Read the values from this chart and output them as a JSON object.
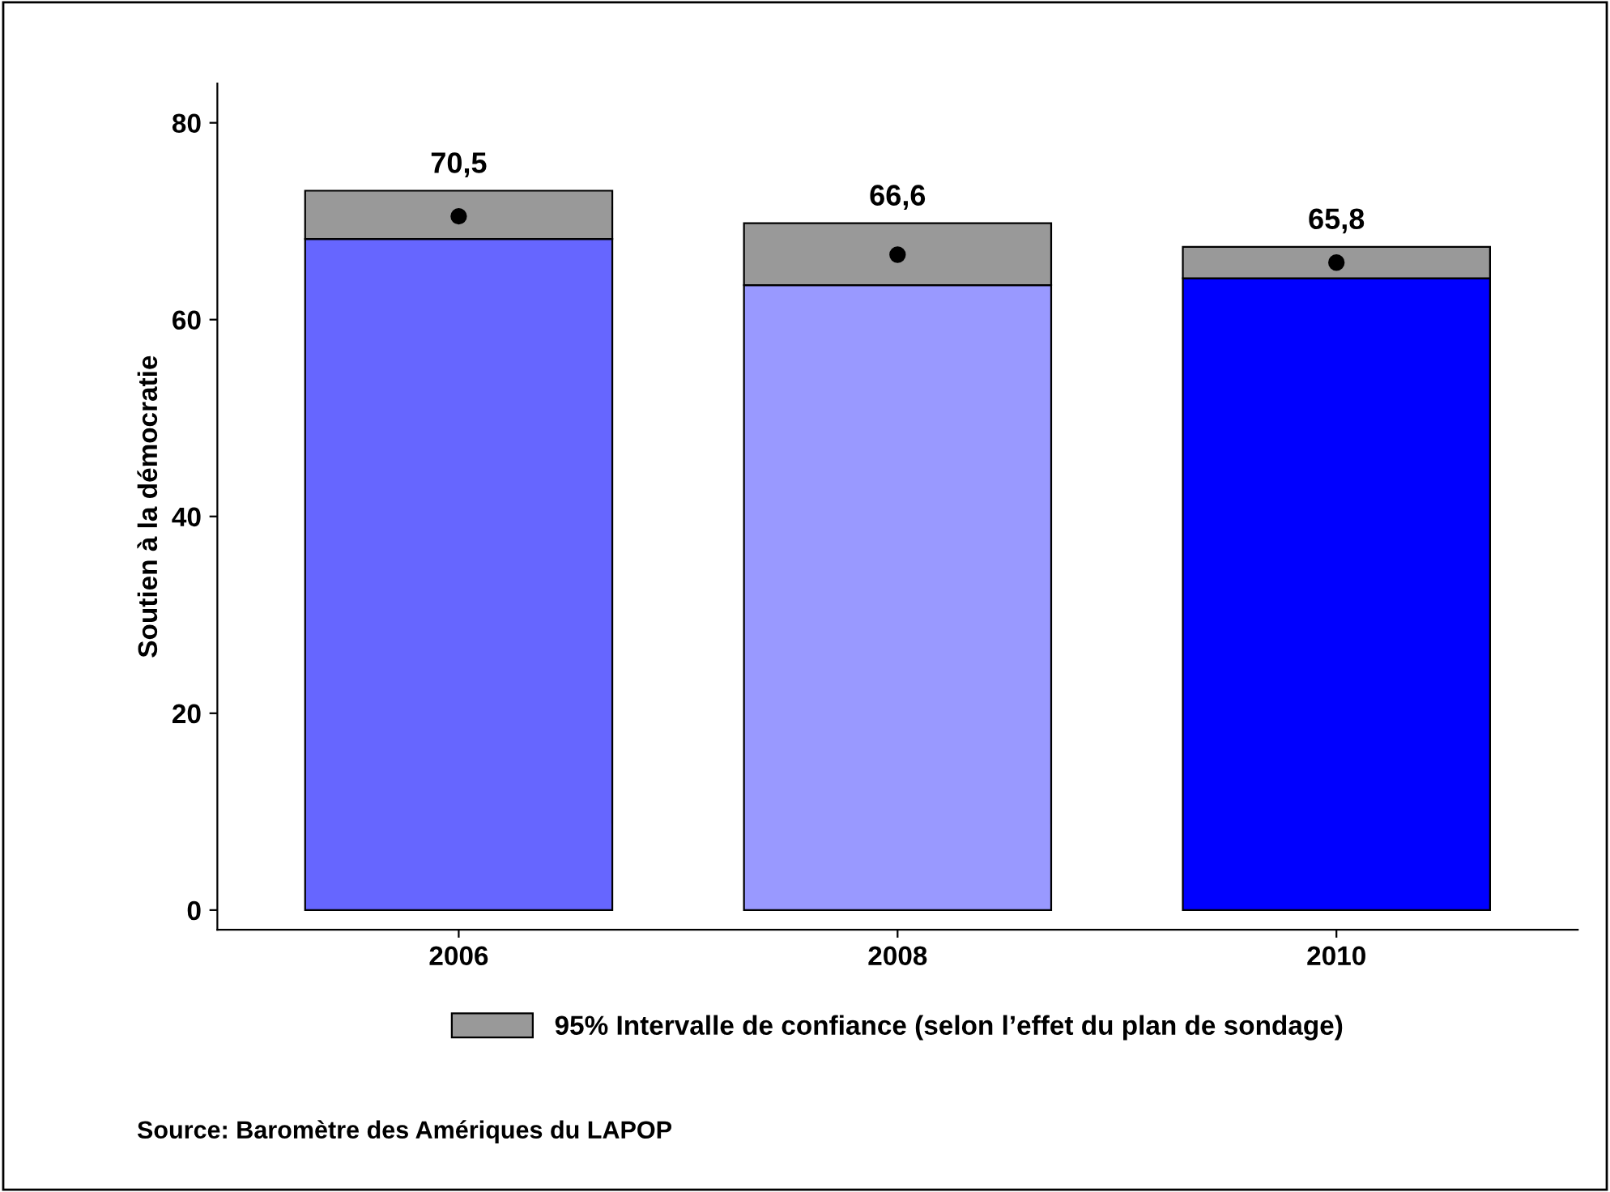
{
  "chart_data": {
    "type": "bar",
    "stacked": true,
    "ylabel": "Soutien à la démocratie",
    "categories": [
      "2006",
      "2008",
      "2010"
    ],
    "series": [
      {
        "colors": [
          "#6666ff",
          "#9999ff",
          "#0000ff"
        ],
        "values": [
          68.2,
          63.5,
          64.2
        ]
      },
      {
        "name": "95% Intervalle de confiance (selon l’effet du plan de sondage)",
        "color": "#999999",
        "values": [
          4.9,
          6.3,
          3.2
        ]
      },
      {
        "type": "scatter",
        "color": "#000000",
        "values": [
          70.5,
          66.6,
          65.8
        ],
        "value_labels": [
          "70,5",
          "66,6",
          "65,8"
        ]
      }
    ],
    "ylim": [
      -2,
      84
    ],
    "yticks": [
      0,
      20,
      40,
      60,
      80
    ],
    "grid": false,
    "legend": "bottom",
    "marker": "circle",
    "annotations": [
      "Source: Baromètre des Amériques du LAPOP"
    ]
  }
}
